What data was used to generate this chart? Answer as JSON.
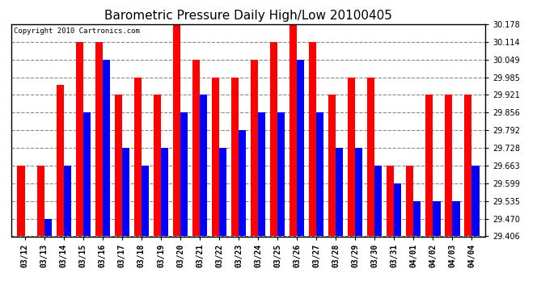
{
  "title": "Barometric Pressure Daily High/Low 20100405",
  "copyright": "Copyright 2010 Cartronics.com",
  "dates": [
    "03/12",
    "03/13",
    "03/14",
    "03/15",
    "03/16",
    "03/17",
    "03/18",
    "03/19",
    "03/20",
    "03/21",
    "03/22",
    "03/23",
    "03/24",
    "03/25",
    "03/26",
    "03/27",
    "03/28",
    "03/29",
    "03/30",
    "03/31",
    "04/01",
    "04/02",
    "04/03",
    "04/04"
  ],
  "highs": [
    29.663,
    29.663,
    29.956,
    30.114,
    30.114,
    29.921,
    29.985,
    29.921,
    30.178,
    30.049,
    29.985,
    29.985,
    30.049,
    30.114,
    30.178,
    30.114,
    29.921,
    29.985,
    29.985,
    29.663,
    29.663,
    29.921,
    29.921,
    29.921
  ],
  "lows": [
    29.406,
    29.47,
    29.663,
    29.856,
    30.049,
    29.728,
    29.663,
    29.728,
    29.856,
    29.921,
    29.728,
    29.792,
    29.856,
    29.856,
    30.049,
    29.856,
    29.728,
    29.728,
    29.663,
    29.599,
    29.535,
    29.535,
    29.535,
    29.663
  ],
  "high_color": "#ff0000",
  "low_color": "#0000ff",
  "background_color": "#ffffff",
  "plot_bg_color": "#ffffff",
  "grid_color": "#888888",
  "ymin": 29.406,
  "ymax": 30.178,
  "yticks": [
    29.406,
    29.47,
    29.535,
    29.599,
    29.663,
    29.728,
    29.792,
    29.856,
    29.921,
    29.985,
    30.049,
    30.114,
    30.178
  ],
  "title_fontsize": 11,
  "copyright_fontsize": 6.5,
  "tick_fontsize": 7,
  "bar_width": 0.38
}
